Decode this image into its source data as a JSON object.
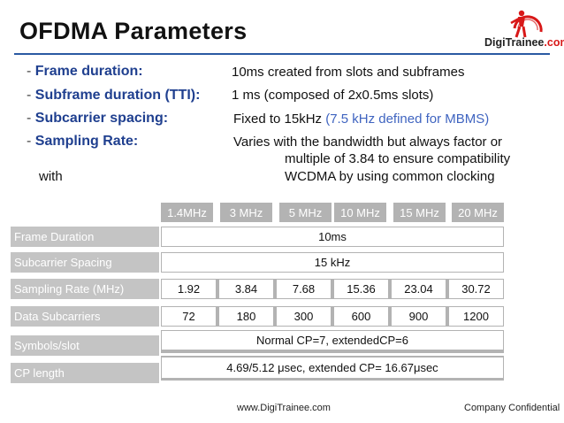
{
  "slide": {
    "title": "OFDMA Parameters",
    "bullets": [
      {
        "dash": "- ",
        "label": "Frame duration:",
        "value": "10ms created from slots and subframes"
      },
      {
        "dash": "- ",
        "label": "Subframe duration (TTI):",
        "value": "1 ms (composed of 2x0.5ms slots)"
      },
      {
        "dash": "- ",
        "label": "Subcarrier spacing:",
        "value": "Fixed to 15kHz ",
        "value_highlight": "(7.5 kHz defined for MBMS)"
      },
      {
        "dash": "- ",
        "label": "Sampling Rate:",
        "value": "Varies with the bandwidth but always factor or"
      }
    ],
    "sampling_cont1": "multiple of 3.84 to ensure compatibility",
    "sampling_cont2_left": "with",
    "sampling_cont2_right": "WCDMA by using common clocking"
  },
  "logo": {
    "text_main": "DigiTrainee",
    "text_suffix": ".com"
  },
  "table": {
    "headers": [
      "1.4MHz",
      "3 MHz",
      "5 MHz",
      "10 MHz",
      "15 MHz",
      "20 MHz"
    ],
    "rows": [
      {
        "label": "Frame Duration",
        "span": "10ms"
      },
      {
        "label": "Subcarrier Spacing",
        "span": "15 kHz"
      },
      {
        "label": "Sampling Rate (MHz)",
        "cells": [
          "1.92",
          "3.84",
          "7.68",
          "15.36",
          "23.04",
          "30.72"
        ]
      },
      {
        "label": "Data Subcarriers",
        "cells": [
          "72",
          "180",
          "300",
          "600",
          "900",
          "1200"
        ]
      },
      {
        "label": "Symbols/slot",
        "span": "Normal CP=7, extendedCP=6"
      },
      {
        "label": "CP length",
        "span": "4.69/5.12 μsec, extended CP= 16.67μsec"
      }
    ]
  },
  "footer": {
    "url": "www.DigiTrainee.com",
    "confidential": "Company Confidential"
  },
  "colors": {
    "title_rule": "#2a5aa3",
    "bullet_label": "#1f3f8f",
    "highlight": "#3f64c0",
    "logo_red": "#d81818",
    "table_gray": "#b3b3b3"
  }
}
